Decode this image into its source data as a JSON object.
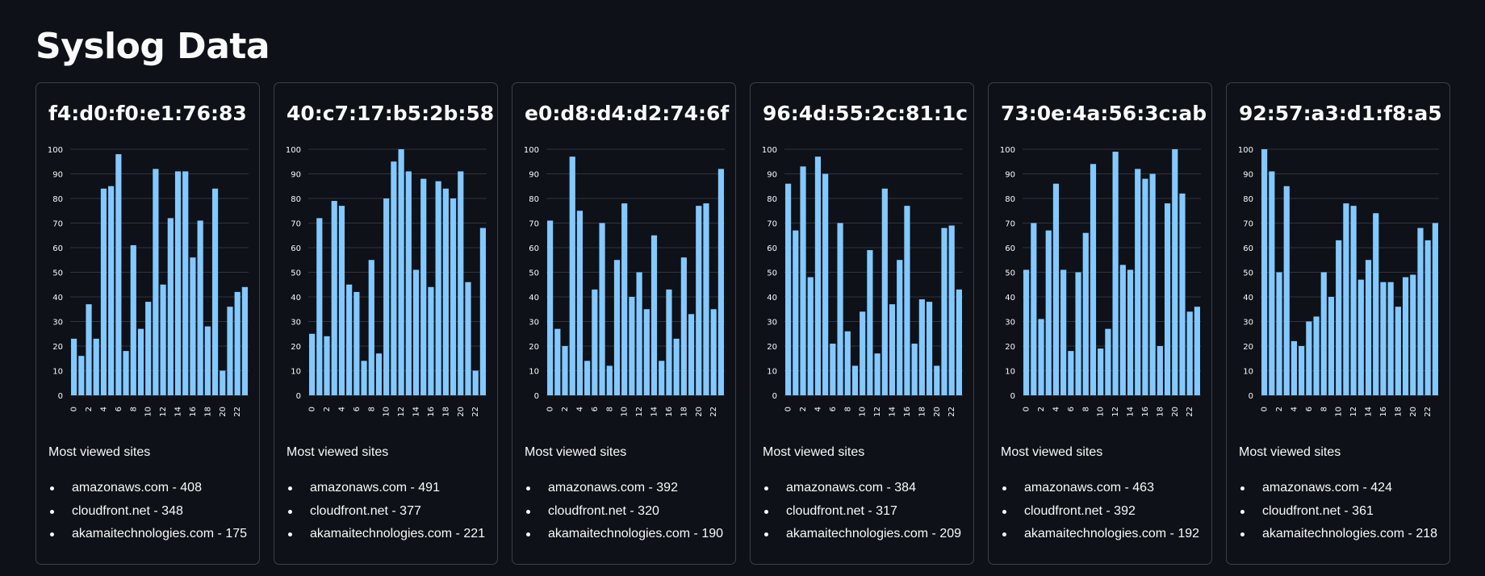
{
  "page": {
    "title": "Syslog Data"
  },
  "colors": {
    "background": "#0e1117",
    "bar": "#83c9ff",
    "grid": "#31333f",
    "text": "#fafafa"
  },
  "section_label": "Most viewed sites",
  "cards": [
    {
      "mac": "f4:d0:f0:e1:76:83",
      "sites": [
        {
          "text": "amazonaws.com - 408"
        },
        {
          "text": "cloudfront.net - 348"
        },
        {
          "text": "akamaitechnologies.com - 175"
        }
      ]
    },
    {
      "mac": "40:c7:17:b5:2b:58",
      "sites": [
        {
          "text": "amazonaws.com - 491"
        },
        {
          "text": "cloudfront.net - 377"
        },
        {
          "text": "akamaitechnologies.com - 221"
        }
      ]
    },
    {
      "mac": "e0:d8:d4:d2:74:6f",
      "sites": [
        {
          "text": "amazonaws.com - 392"
        },
        {
          "text": "cloudfront.net - 320"
        },
        {
          "text": "akamaitechnologies.com - 190"
        }
      ]
    },
    {
      "mac": "96:4d:55:2c:81:1c",
      "sites": [
        {
          "text": "amazonaws.com - 384"
        },
        {
          "text": "cloudfront.net - 317"
        },
        {
          "text": "akamaitechnologies.com - 209"
        }
      ]
    },
    {
      "mac": "73:0e:4a:56:3c:ab",
      "sites": [
        {
          "text": "amazonaws.com - 463"
        },
        {
          "text": "cloudfront.net - 392"
        },
        {
          "text": "akamaitechnologies.com - 192"
        }
      ]
    },
    {
      "mac": "92:57:a3:d1:f8:a5",
      "sites": [
        {
          "text": "amazonaws.com - 424"
        },
        {
          "text": "cloudfront.net - 361"
        },
        {
          "text": "akamaitechnologies.com - 218"
        }
      ]
    }
  ],
  "chart_data": [
    {
      "type": "bar",
      "title": "f4:d0:f0:e1:76:83",
      "x": [
        0,
        1,
        2,
        3,
        4,
        5,
        6,
        7,
        8,
        9,
        10,
        11,
        12,
        13,
        14,
        15,
        16,
        17,
        18,
        19,
        20,
        21,
        22,
        23
      ],
      "values": [
        23,
        16,
        37,
        23,
        84,
        85,
        98,
        18,
        61,
        27,
        38,
        92,
        45,
        72,
        91,
        91,
        56,
        71,
        28,
        84,
        10,
        36,
        42,
        44
      ],
      "ylim": [
        0,
        100
      ],
      "yticks": [
        0,
        10,
        20,
        30,
        40,
        50,
        60,
        70,
        80,
        90,
        100
      ],
      "xticks": [
        0,
        2,
        4,
        6,
        8,
        10,
        12,
        14,
        16,
        18,
        20,
        22
      ],
      "grid": true
    },
    {
      "type": "bar",
      "title": "40:c7:17:b5:2b:58",
      "x": [
        0,
        1,
        2,
        3,
        4,
        5,
        6,
        7,
        8,
        9,
        10,
        11,
        12,
        13,
        14,
        15,
        16,
        17,
        18,
        19,
        20,
        21,
        22,
        23
      ],
      "values": [
        25,
        72,
        24,
        79,
        77,
        45,
        42,
        14,
        55,
        17,
        80,
        95,
        100,
        91,
        51,
        88,
        44,
        87,
        84,
        80,
        91,
        46,
        10,
        68
      ],
      "ylim": [
        0,
        100
      ],
      "yticks": [
        0,
        10,
        20,
        30,
        40,
        50,
        60,
        70,
        80,
        90,
        100
      ],
      "xticks": [
        0,
        2,
        4,
        6,
        8,
        10,
        12,
        14,
        16,
        18,
        20,
        22
      ],
      "grid": true
    },
    {
      "type": "bar",
      "title": "e0:d8:d4:d2:74:6f",
      "x": [
        0,
        1,
        2,
        3,
        4,
        5,
        6,
        7,
        8,
        9,
        10,
        11,
        12,
        13,
        14,
        15,
        16,
        17,
        18,
        19,
        20,
        21,
        22,
        23
      ],
      "values": [
        71,
        27,
        20,
        97,
        75,
        14,
        43,
        70,
        12,
        55,
        78,
        40,
        50,
        35,
        65,
        14,
        43,
        23,
        56,
        33,
        77,
        78,
        35,
        92
      ],
      "ylim": [
        0,
        100
      ],
      "yticks": [
        0,
        10,
        20,
        30,
        40,
        50,
        60,
        70,
        80,
        90,
        100
      ],
      "xticks": [
        0,
        2,
        4,
        6,
        8,
        10,
        12,
        14,
        16,
        18,
        20,
        22
      ],
      "grid": true
    },
    {
      "type": "bar",
      "title": "96:4d:55:2c:81:1c",
      "x": [
        0,
        1,
        2,
        3,
        4,
        5,
        6,
        7,
        8,
        9,
        10,
        11,
        12,
        13,
        14,
        15,
        16,
        17,
        18,
        19,
        20,
        21,
        22,
        23
      ],
      "values": [
        86,
        67,
        93,
        48,
        97,
        90,
        21,
        70,
        26,
        12,
        34,
        59,
        17,
        84,
        37,
        55,
        77,
        21,
        39,
        38,
        12,
        68,
        69,
        43
      ],
      "ylim": [
        0,
        100
      ],
      "yticks": [
        0,
        10,
        20,
        30,
        40,
        50,
        60,
        70,
        80,
        90,
        100
      ],
      "xticks": [
        0,
        2,
        4,
        6,
        8,
        10,
        12,
        14,
        16,
        18,
        20,
        22
      ],
      "grid": true
    },
    {
      "type": "bar",
      "title": "73:0e:4a:56:3c:ab",
      "x": [
        0,
        1,
        2,
        3,
        4,
        5,
        6,
        7,
        8,
        9,
        10,
        11,
        12,
        13,
        14,
        15,
        16,
        17,
        18,
        19,
        20,
        21,
        22,
        23
      ],
      "values": [
        51,
        70,
        31,
        67,
        86,
        51,
        18,
        50,
        66,
        94,
        19,
        27,
        99,
        53,
        51,
        92,
        88,
        90,
        20,
        78,
        100,
        82,
        34,
        36
      ],
      "ylim": [
        0,
        100
      ],
      "yticks": [
        0,
        10,
        20,
        30,
        40,
        50,
        60,
        70,
        80,
        90,
        100
      ],
      "xticks": [
        0,
        2,
        4,
        6,
        8,
        10,
        12,
        14,
        16,
        18,
        20,
        22
      ],
      "grid": true
    },
    {
      "type": "bar",
      "title": "92:57:a3:d1:f8:a5",
      "x": [
        0,
        1,
        2,
        3,
        4,
        5,
        6,
        7,
        8,
        9,
        10,
        11,
        12,
        13,
        14,
        15,
        16,
        17,
        18,
        19,
        20,
        21,
        22,
        23
      ],
      "values": [
        100,
        91,
        50,
        85,
        22,
        20,
        30,
        32,
        50,
        40,
        63,
        78,
        77,
        47,
        55,
        74,
        46,
        46,
        36,
        48,
        49,
        68,
        63,
        70
      ],
      "ylim": [
        0,
        100
      ],
      "yticks": [
        0,
        10,
        20,
        30,
        40,
        50,
        60,
        70,
        80,
        90,
        100
      ],
      "xticks": [
        0,
        2,
        4,
        6,
        8,
        10,
        12,
        14,
        16,
        18,
        20,
        22
      ],
      "grid": true
    }
  ]
}
